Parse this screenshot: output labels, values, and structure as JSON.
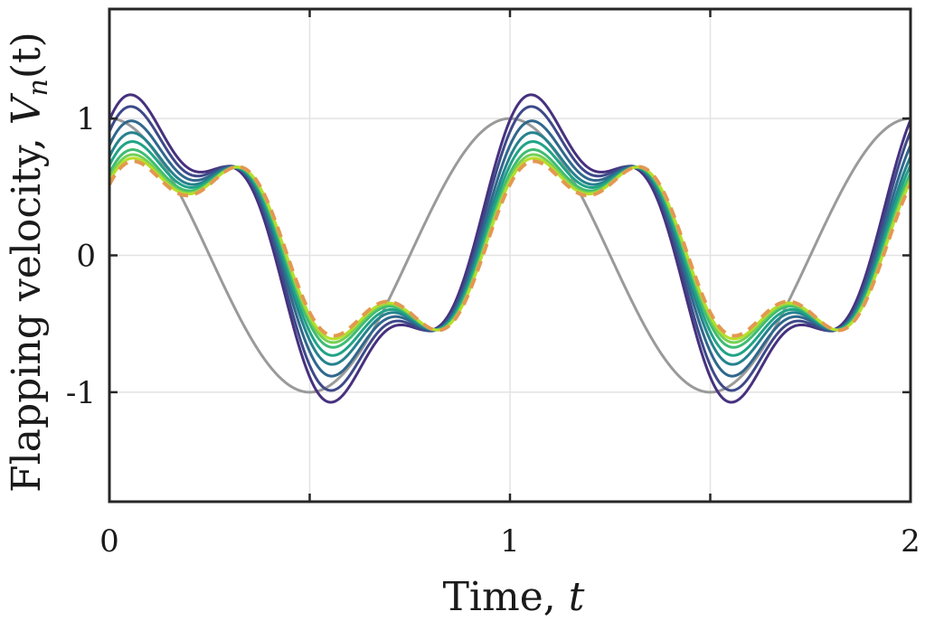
{
  "chart_data": {
    "type": "line",
    "xlabel": "Time, ",
    "xlabel_var": "t",
    "ylabel": "Flapping velocity, ",
    "ylabel_var": "V",
    "ylabel_sub": "n",
    "ylabel_arg": "(t)",
    "xlim": [
      0,
      2
    ],
    "ylim": [
      -1.8,
      1.8
    ],
    "xticks": [
      0,
      1,
      2
    ],
    "xtick_labels": [
      "0",
      "1",
      "2"
    ],
    "yticks": [
      -1,
      0,
      1
    ],
    "ytick_labels": [
      "-1",
      "0",
      "1"
    ],
    "grid": true,
    "reference": {
      "name": "",
      "color": "#9a9a9a",
      "formula": "cos(2*pi*t)"
    },
    "series": [
      {
        "color": "#46317e",
        "offset": 0.28,
        "amp": 0.8,
        "phase": 0.0
      },
      {
        "color": "#3e4989",
        "offset": 0.2,
        "amp": 0.78,
        "phase": 0.0
      },
      {
        "color": "#30678d",
        "offset": 0.12,
        "amp": 0.7,
        "phase": 0.0
      },
      {
        "color": "#26828e",
        "offset": 0.05,
        "amp": 0.65,
        "phase": 0.0
      },
      {
        "color": "#20a386",
        "offset": 0.0,
        "amp": 0.6,
        "phase": 0.0
      },
      {
        "color": "#3fbc73",
        "offset": -0.05,
        "amp": 0.57,
        "phase": 0.0
      },
      {
        "color": "#75d054",
        "offset": -0.08,
        "amp": 0.55,
        "phase": 0.0
      },
      {
        "color": "#b8de29",
        "offset": -0.1,
        "amp": 0.53,
        "phase": 0.0
      },
      {
        "color": "#e39850",
        "offset": -0.12,
        "amp": 0.52,
        "phase": 0.0,
        "dashed": true
      }
    ]
  }
}
